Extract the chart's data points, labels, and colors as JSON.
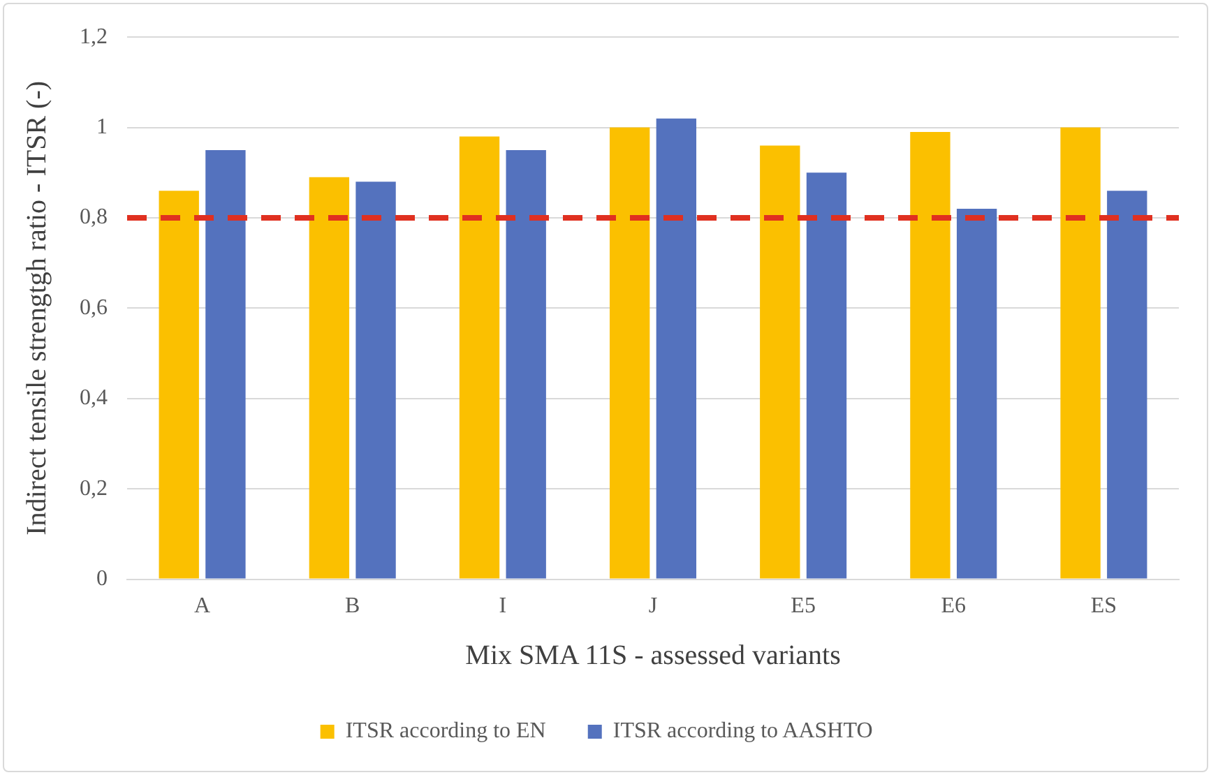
{
  "chart_data": {
    "type": "bar",
    "xlabel": "Mix SMA 11S - assessed variants",
    "ylabel": "Indirect tensile strengtgh ratio - ITSR (-)",
    "categories": [
      "A",
      "B",
      "I",
      "J",
      "E5",
      "E6",
      "ES"
    ],
    "series": [
      {
        "name": "ITSR according to EN",
        "color": "#fbc000",
        "values": [
          0.86,
          0.89,
          0.98,
          1.0,
          0.96,
          0.99,
          1.0
        ]
      },
      {
        "name": "ITSR according to AASHTO",
        "color": "#5472be",
        "values": [
          0.95,
          0.88,
          0.95,
          1.02,
          0.9,
          0.82,
          0.86
        ]
      }
    ],
    "ylim": [
      0,
      1.2
    ],
    "yticks": [
      0,
      {
        "value": 0.2,
        "label": "0,2"
      },
      {
        "value": 0.4,
        "label": "0,4"
      },
      {
        "value": 0.6,
        "label": "0,6"
      },
      {
        "value": 0.8,
        "label": "0,8"
      },
      1,
      {
        "value": 1.2,
        "label": "1,2"
      }
    ],
    "ref_lines": [
      {
        "axis": "y",
        "value": 0.8,
        "color": "#e03020",
        "line_style": "dashed"
      }
    ],
    "grid": "y",
    "legend": "bottom"
  }
}
